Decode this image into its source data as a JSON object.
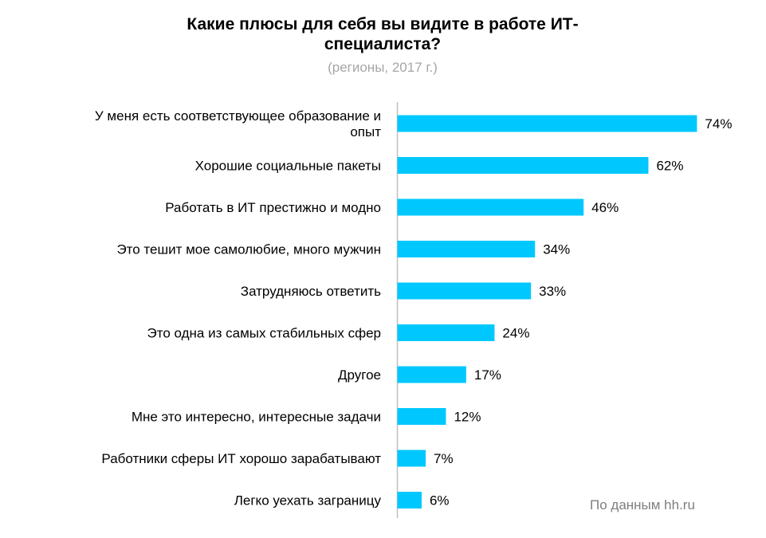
{
  "header": {
    "title_line1": "Какие плюсы для себя вы видите в работе ИТ-",
    "title_line2": "специалиста?",
    "subtitle": "(регионы, 2017 г.)"
  },
  "footer": {
    "source": "По данным hh.ru"
  },
  "chart_data": {
    "type": "bar",
    "orientation": "horizontal",
    "title": "Какие плюсы для себя вы видите в работе ИТ-специалиста?",
    "subtitle": "(регионы, 2017 г.)",
    "categories": [
      [
        "У меня есть соответствующее образование и",
        "опыт"
      ],
      [
        "Хорошие социальные пакеты"
      ],
      [
        "Работать в ИТ престижно и модно"
      ],
      [
        "Это тешит мое самолюбие, много мужчин"
      ],
      [
        "Затрудняюсь ответить"
      ],
      [
        "Это одна из самых стабильных сфер"
      ],
      [
        "Другое"
      ],
      [
        "Мне это интересно, интересные задачи"
      ],
      [
        "Работники сферы ИТ хорошо зарабатывают"
      ],
      [
        "Легко уехать заграницу"
      ]
    ],
    "values": [
      74,
      62,
      46,
      34,
      33,
      24,
      17,
      12,
      7,
      6
    ],
    "value_labels": [
      "74%",
      "62%",
      "46%",
      "34%",
      "33%",
      "24%",
      "17%",
      "12%",
      "7%",
      "6%"
    ],
    "bar_color": "#00c8ff",
    "axis_color": "#bfbfbf",
    "xlim": [
      0,
      100
    ],
    "grid": false
  }
}
